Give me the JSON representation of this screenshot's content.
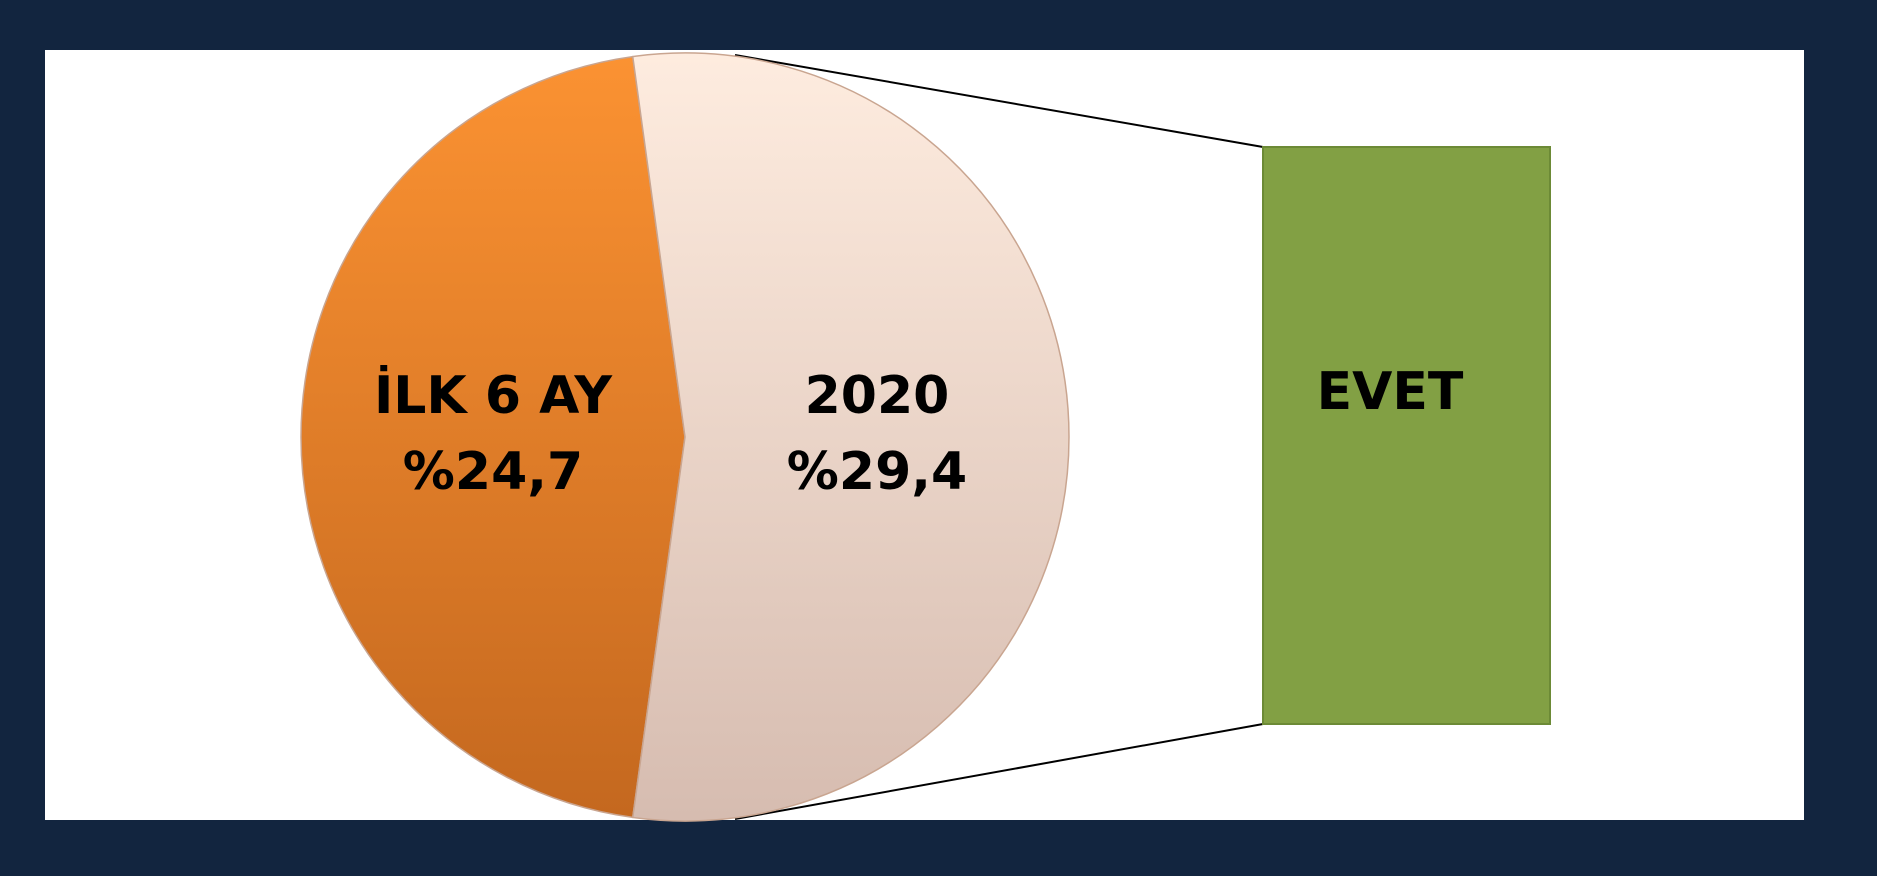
{
  "chart_data": {
    "type": "pie",
    "categories": [
      "İLK 6 AY",
      "2020"
    ],
    "values": [
      24.7,
      29.4
    ],
    "value_labels": [
      "%24,7",
      "%29,4"
    ],
    "colors": [
      "#ee8229",
      "#f3ddd0"
    ],
    "bar_label": "EVET",
    "bar_color": "#82a044"
  }
}
